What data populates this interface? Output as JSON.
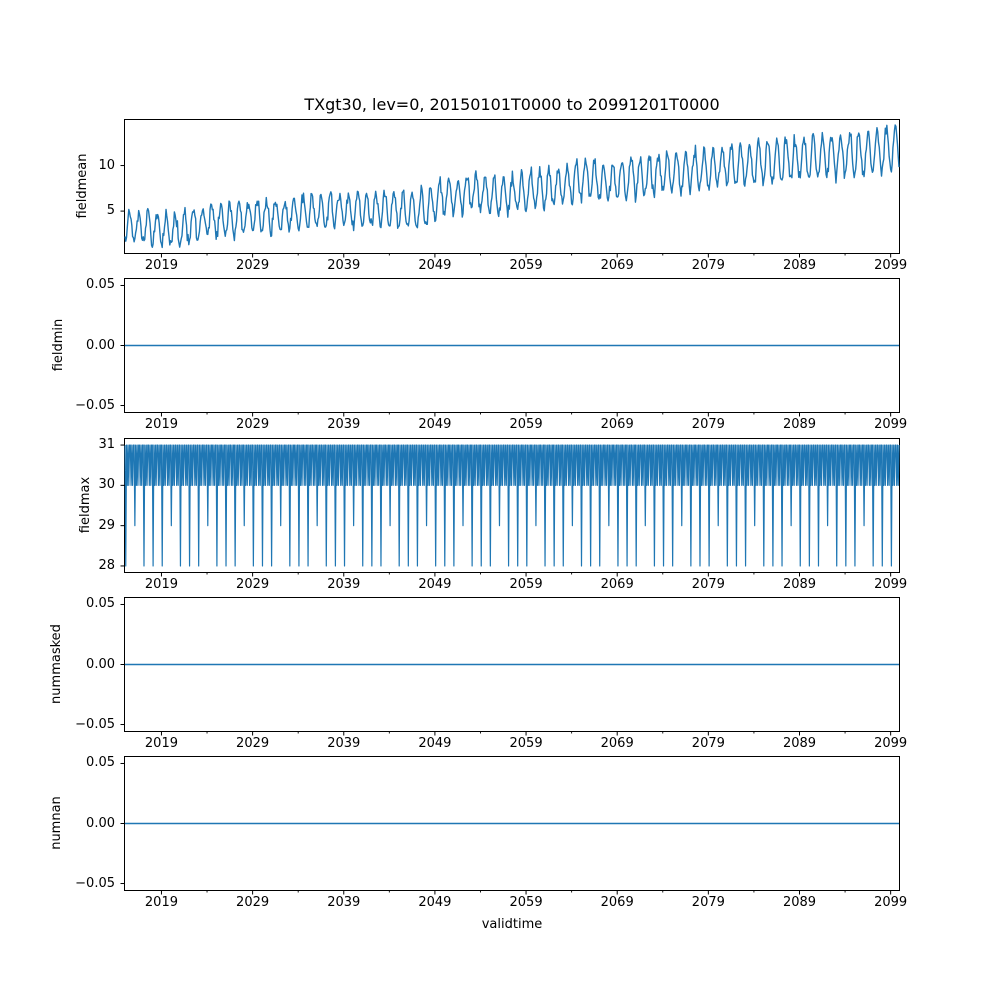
{
  "title": "TXgt30, lev=0, 20150101T0000 to 20991201T0000",
  "xlabel": "validtime",
  "line_color": "#1f77b4",
  "frame_color": "#000000",
  "background_color": "#ffffff",
  "time_range": {
    "start": "20150101T0000",
    "end": "20991201T0000"
  },
  "xlim_year": [
    2015.0,
    2099.9167
  ],
  "xticks": {
    "major": [
      {
        "year": 2019,
        "label": "2019"
      },
      {
        "year": 2029,
        "label": "2029"
      },
      {
        "year": 2039,
        "label": "2039"
      },
      {
        "year": 2049,
        "label": "2049"
      },
      {
        "year": 2059,
        "label": "2059"
      },
      {
        "year": 2069,
        "label": "2069"
      },
      {
        "year": 2079,
        "label": "2079"
      },
      {
        "year": 2089,
        "label": "2089"
      },
      {
        "year": 2099,
        "label": "2099"
      }
    ],
    "minor_years": [
      2024,
      2034,
      2044,
      2054,
      2064,
      2074,
      2084,
      2094
    ]
  },
  "chart_data": [
    {
      "name": "fieldmean",
      "type": "line",
      "ylabel": "fieldmean",
      "ylim": [
        0.4,
        15.0
      ],
      "yticks": [
        {
          "v": 5,
          "label": "5"
        },
        {
          "v": 10,
          "label": "10"
        }
      ],
      "x_monthly_from": "2015-01",
      "x_monthly_to": "2099-12",
      "series": {
        "kind": "trend_seasonal_noise",
        "description": "monthly spatial-mean count of days with TX>30, rising noisy annual cycle",
        "anchor_years": [
          2015,
          2019,
          2021,
          2024,
          2027,
          2030,
          2034,
          2038,
          2042,
          2046,
          2048,
          2050,
          2053,
          2056,
          2059,
          2062,
          2065,
          2068,
          2071,
          2074,
          2077,
          2080,
          2083,
          2086,
          2089,
          2092,
          2095,
          2098,
          2100
        ],
        "anchor_means": [
          3.4,
          3.1,
          2.9,
          3.9,
          4.1,
          4.4,
          4.7,
          5.1,
          5.2,
          5.0,
          5.4,
          6.6,
          6.9,
          6.5,
          7.2,
          7.6,
          8.5,
          8.2,
          8.8,
          9.1,
          9.4,
          9.9,
          10.1,
          10.5,
          10.8,
          11.1,
          11.4,
          11.7,
          11.9
        ],
        "seasonal_amplitude_start": 1.55,
        "seasonal_amplitude_end": 2.35,
        "seasonal_peak_month": 7.2,
        "noise_half_range": 0.9,
        "clip_min": 0.85,
        "clip_max": 14.45,
        "observed_min": 1.0,
        "observed_max": 14.3,
        "seed": 20150101
      }
    },
    {
      "name": "fieldmin",
      "type": "line",
      "ylabel": "fieldmin",
      "ylim": [
        -0.0554,
        0.0554
      ],
      "yticks": [
        {
          "v": 0.05,
          "label": "0.05"
        },
        {
          "v": 0,
          "label": "0.00"
        },
        {
          "v": -0.05,
          "label": "−0.05"
        }
      ],
      "series": {
        "kind": "constant",
        "value": 0
      }
    },
    {
      "name": "fieldmax",
      "type": "line",
      "ylabel": "fieldmax",
      "ylim": [
        27.85,
        31.15
      ],
      "yticks": [
        {
          "v": 31,
          "label": "31"
        },
        {
          "v": 30,
          "label": "30"
        },
        {
          "v": 29,
          "label": "29"
        },
        {
          "v": 28,
          "label": "28"
        }
      ],
      "x_monthly_from": "2015-01",
      "x_monthly_to": "2099-12",
      "series": {
        "kind": "days_in_month",
        "description": "maximum equals number of days in each month: 31/30, Feb 28, leap Feb 29",
        "month_days_common": [
          31,
          28,
          31,
          30,
          31,
          30,
          31,
          31,
          30,
          31,
          30,
          31
        ],
        "leap_february_days": 29,
        "leap_years": "every 4th year from 2016 through 2096"
      }
    },
    {
      "name": "nummasked",
      "type": "line",
      "ylabel": "nummasked",
      "ylim": [
        -0.0554,
        0.0554
      ],
      "yticks": [
        {
          "v": 0.05,
          "label": "0.05"
        },
        {
          "v": 0,
          "label": "0.00"
        },
        {
          "v": -0.05,
          "label": "−0.05"
        }
      ],
      "series": {
        "kind": "constant",
        "value": 0
      }
    },
    {
      "name": "numnan",
      "type": "line",
      "ylabel": "numnan",
      "ylim": [
        -0.0554,
        0.0554
      ],
      "yticks": [
        {
          "v": 0.05,
          "label": "0.05"
        },
        {
          "v": 0,
          "label": "0.00"
        },
        {
          "v": -0.05,
          "label": "−0.05"
        }
      ],
      "series": {
        "kind": "constant",
        "value": 0
      }
    }
  ]
}
